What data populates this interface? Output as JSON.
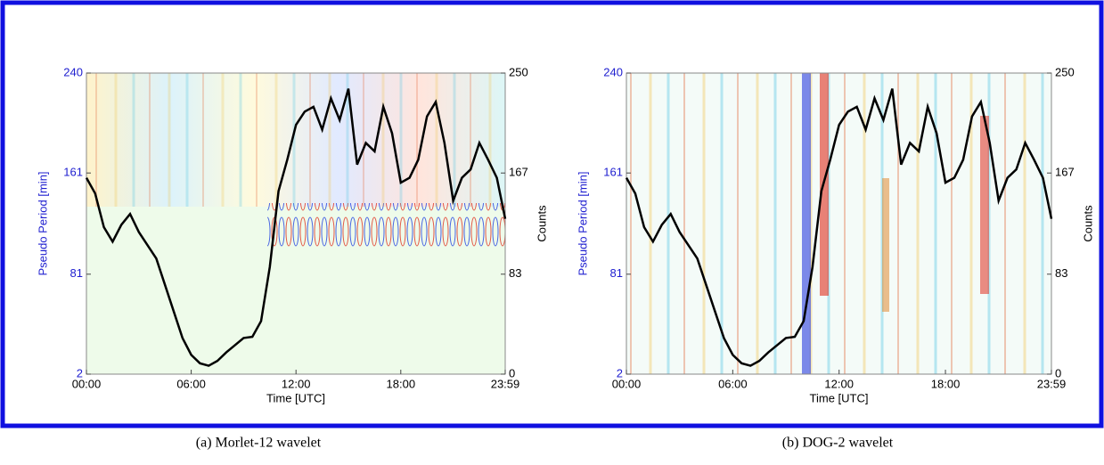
{
  "chart_data": [
    {
      "type": "line",
      "caption": "(a) Morlet-12 wavelet",
      "xlabel": "Time [UTC]",
      "ylabel": "Pseudo Period [min]",
      "y2label": "Counts",
      "xlim": [
        0,
        23.98
      ],
      "xticks": [
        {
          "value": 0,
          "label": "00:00"
        },
        {
          "value": 6,
          "label": "06:00"
        },
        {
          "value": 12,
          "label": "12:00"
        },
        {
          "value": 18,
          "label": "18:00"
        },
        {
          "value": 23.98,
          "label": "23:59"
        }
      ],
      "ylim": [
        2,
        240
      ],
      "yticks": [
        2,
        81,
        161,
        240
      ],
      "y2lim": [
        0,
        250
      ],
      "y2ticks": [
        0,
        83,
        167,
        250
      ],
      "x": [
        0,
        0.5,
        1,
        1.5,
        2,
        2.5,
        3,
        3.5,
        4,
        4.5,
        5,
        5.5,
        6,
        6.5,
        7,
        7.5,
        8,
        8.5,
        9,
        9.5,
        10,
        10.5,
        11,
        11.5,
        12,
        12.5,
        13,
        13.5,
        14,
        14.5,
        15,
        15.5,
        16,
        16.5,
        17,
        17.5,
        18,
        18.5,
        19,
        19.5,
        20,
        20.5,
        21,
        21.5,
        22,
        22.5,
        23,
        23.5,
        23.98
      ],
      "series": [
        {
          "color": "#000000",
          "axis": "y2",
          "values": [
            163,
            150,
            122,
            110,
            124,
            133,
            118,
            107,
            96,
            74,
            52,
            30,
            16,
            9,
            7,
            11,
            18,
            24,
            30,
            31,
            44,
            89,
            152,
            178,
            207,
            218,
            222,
            203,
            229,
            211,
            237,
            174,
            192,
            185,
            222,
            200,
            159,
            163,
            178,
            214,
            226,
            192,
            144,
            163,
            170,
            192,
            178,
            163,
            129
          ]
        }
      ]
    },
    {
      "type": "line",
      "caption": "(b) DOG-2 wavelet",
      "xlabel": "Time [UTC]",
      "ylabel": "Pseudo Period [min]",
      "y2label": "Counts",
      "xlim": [
        0,
        23.98
      ],
      "xticks": [
        {
          "value": 0,
          "label": "00:00"
        },
        {
          "value": 6,
          "label": "06:00"
        },
        {
          "value": 12,
          "label": "12:00"
        },
        {
          "value": 18,
          "label": "18:00"
        },
        {
          "value": 23.98,
          "label": "23:59"
        }
      ],
      "ylim": [
        2,
        240
      ],
      "yticks": [
        2,
        81,
        161,
        240
      ],
      "y2lim": [
        0,
        250
      ],
      "y2ticks": [
        0,
        83,
        167,
        250
      ],
      "x": [
        0,
        0.5,
        1,
        1.5,
        2,
        2.5,
        3,
        3.5,
        4,
        4.5,
        5,
        5.5,
        6,
        6.5,
        7,
        7.5,
        8,
        8.5,
        9,
        9.5,
        10,
        10.5,
        11,
        11.5,
        12,
        12.5,
        13,
        13.5,
        14,
        14.5,
        15,
        15.5,
        16,
        16.5,
        17,
        17.5,
        18,
        18.5,
        19,
        19.5,
        20,
        20.5,
        21,
        21.5,
        22,
        22.5,
        23,
        23.5,
        23.98
      ],
      "series": [
        {
          "color": "#000000",
          "axis": "y2",
          "values": [
            163,
            150,
            122,
            110,
            124,
            133,
            118,
            107,
            96,
            74,
            52,
            30,
            16,
            9,
            7,
            11,
            18,
            24,
            30,
            31,
            44,
            89,
            152,
            178,
            207,
            218,
            222,
            203,
            229,
            211,
            237,
            174,
            192,
            185,
            222,
            200,
            159,
            163,
            178,
            214,
            226,
            192,
            144,
            163,
            170,
            192,
            178,
            163,
            129
          ]
        }
      ]
    }
  ]
}
